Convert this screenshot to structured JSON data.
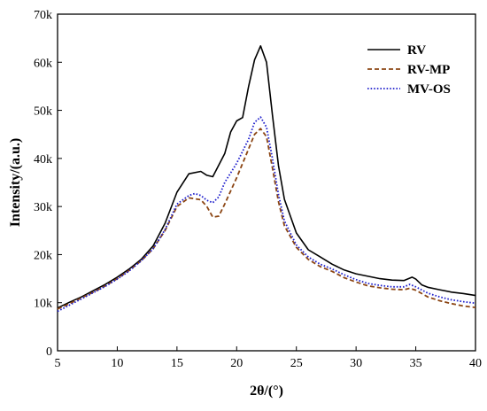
{
  "chart_data": {
    "type": "line",
    "title": "",
    "xlabel": "2θ/(°)",
    "ylabel": "Intensity/(a.u.)",
    "xlim": [
      5,
      40
    ],
    "ylim": [
      0,
      70000
    ],
    "x_ticks": [
      5,
      10,
      15,
      20,
      25,
      30,
      35,
      40
    ],
    "x_tick_labels": [
      "5",
      "10",
      "15",
      "20",
      "25",
      "30",
      "35",
      "40"
    ],
    "y_ticks": [
      0,
      10000,
      20000,
      30000,
      40000,
      50000,
      60000,
      70000
    ],
    "y_tick_labels": [
      "0",
      "10k",
      "20k",
      "30k",
      "40k",
      "50k",
      "60k",
      "70k"
    ],
    "grid": false,
    "legend_position": "top-right",
    "series": [
      {
        "name": "RV",
        "color": "#000000",
        "dash": "solid",
        "points": [
          [
            5,
            8900
          ],
          [
            6,
            10100
          ],
          [
            7,
            11200
          ],
          [
            8,
            12500
          ],
          [
            9,
            13800
          ],
          [
            10,
            15300
          ],
          [
            11,
            17000
          ],
          [
            12,
            19000
          ],
          [
            13,
            21800
          ],
          [
            14,
            26500
          ],
          [
            15,
            33000
          ],
          [
            16,
            36800
          ],
          [
            17,
            37300
          ],
          [
            17.5,
            36500
          ],
          [
            18,
            36200
          ],
          [
            19,
            41000
          ],
          [
            19.5,
            45500
          ],
          [
            20,
            47800
          ],
          [
            20.5,
            48500
          ],
          [
            21,
            55000
          ],
          [
            21.5,
            60500
          ],
          [
            22,
            63400
          ],
          [
            22.5,
            60000
          ],
          [
            23,
            49000
          ],
          [
            23.5,
            38500
          ],
          [
            24,
            31500
          ],
          [
            25,
            24500
          ],
          [
            26,
            21000
          ],
          [
            27,
            19500
          ],
          [
            28,
            18000
          ],
          [
            29,
            16800
          ],
          [
            30,
            16000
          ],
          [
            31,
            15500
          ],
          [
            32,
            15000
          ],
          [
            33,
            14700
          ],
          [
            34,
            14600
          ],
          [
            34.7,
            15300
          ],
          [
            35,
            14900
          ],
          [
            35.5,
            13700
          ],
          [
            36,
            13200
          ],
          [
            37,
            12700
          ],
          [
            38,
            12200
          ],
          [
            39,
            11900
          ],
          [
            40,
            11500
          ]
        ]
      },
      {
        "name": "RV-MP",
        "color": "#8B4513",
        "dash": "dashed",
        "points": [
          [
            5,
            8700
          ],
          [
            6,
            9800
          ],
          [
            7,
            11000
          ],
          [
            8,
            12200
          ],
          [
            9,
            13500
          ],
          [
            10,
            15000
          ],
          [
            11,
            16700
          ],
          [
            12,
            18700
          ],
          [
            13,
            21200
          ],
          [
            14,
            25000
          ],
          [
            15,
            30000
          ],
          [
            16,
            31800
          ],
          [
            17,
            31400
          ],
          [
            17.5,
            30000
          ],
          [
            18,
            27800
          ],
          [
            18.5,
            28000
          ],
          [
            19,
            30500
          ],
          [
            20,
            36000
          ],
          [
            21,
            42000
          ],
          [
            21.5,
            45000
          ],
          [
            22,
            46200
          ],
          [
            22.5,
            44500
          ],
          [
            23,
            38000
          ],
          [
            23.5,
            31000
          ],
          [
            24,
            26000
          ],
          [
            25,
            21500
          ],
          [
            26,
            19000
          ],
          [
            27,
            17500
          ],
          [
            28,
            16500
          ],
          [
            29,
            15200
          ],
          [
            30,
            14300
          ],
          [
            31,
            13500
          ],
          [
            32,
            13100
          ],
          [
            33,
            12800
          ],
          [
            34,
            12700
          ],
          [
            34.5,
            13000
          ],
          [
            35,
            12600
          ],
          [
            36,
            11200
          ],
          [
            37,
            10400
          ],
          [
            38,
            9800
          ],
          [
            39,
            9300
          ],
          [
            40,
            9000
          ]
        ]
      },
      {
        "name": "MV-OS",
        "color": "#1F1FCC",
        "dash": "dotted",
        "points": [
          [
            5,
            8200
          ],
          [
            6,
            9500
          ],
          [
            7,
            10800
          ],
          [
            8,
            12100
          ],
          [
            9,
            13400
          ],
          [
            10,
            14900
          ],
          [
            11,
            16600
          ],
          [
            12,
            18700
          ],
          [
            13,
            21200
          ],
          [
            14,
            25200
          ],
          [
            15,
            30500
          ],
          [
            16,
            32300
          ],
          [
            16.5,
            32700
          ],
          [
            17,
            32300
          ],
          [
            17.5,
            31300
          ],
          [
            18,
            30800
          ],
          [
            18.5,
            32000
          ],
          [
            19,
            35000
          ],
          [
            20,
            39000
          ],
          [
            21,
            44000
          ],
          [
            21.5,
            47500
          ],
          [
            22,
            48600
          ],
          [
            22.5,
            46500
          ],
          [
            23,
            40000
          ],
          [
            23.5,
            32500
          ],
          [
            24,
            27000
          ],
          [
            25,
            22000
          ],
          [
            26,
            19500
          ],
          [
            27,
            18000
          ],
          [
            28,
            17000
          ],
          [
            29,
            15800
          ],
          [
            30,
            14800
          ],
          [
            31,
            14000
          ],
          [
            32,
            13600
          ],
          [
            33,
            13300
          ],
          [
            34,
            13300
          ],
          [
            34.5,
            13800
          ],
          [
            35,
            13300
          ],
          [
            36,
            12000
          ],
          [
            37,
            11200
          ],
          [
            38,
            10600
          ],
          [
            39,
            10200
          ],
          [
            40,
            9900
          ]
        ]
      }
    ]
  }
}
